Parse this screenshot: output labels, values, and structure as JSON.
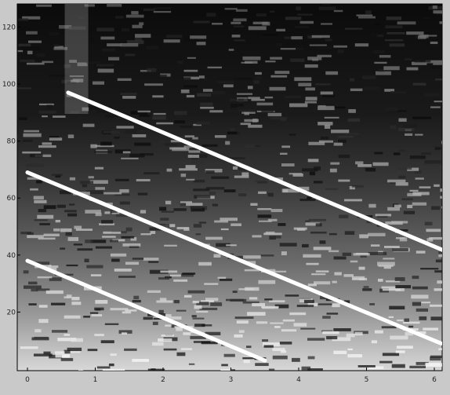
{
  "chart_data": {
    "type": "heatmap",
    "title": "",
    "xlabel": "",
    "ylabel": "",
    "xlim": [
      0,
      6.3
    ],
    "ylim": [
      0,
      128
    ],
    "x_ticks": [
      "0",
      "1",
      "2",
      "3",
      "4",
      "5",
      "6"
    ],
    "y_ticks": [
      "20",
      "40",
      "60",
      "80",
      "100",
      "120"
    ],
    "grid": false,
    "colormap": "grayscale",
    "overlay_lines": [
      {
        "x": [
          0.6,
          6.3
        ],
        "y": [
          97,
          40
        ]
      },
      {
        "x": [
          0.0,
          6.1
        ],
        "y": [
          69,
          9
        ]
      },
      {
        "x": [
          0.0,
          3.5
        ],
        "y": [
          38,
          3
        ]
      }
    ],
    "colors": {
      "background": "#c9c9c9",
      "overlay_line": "#ffffff",
      "axis": "#000000"
    }
  }
}
